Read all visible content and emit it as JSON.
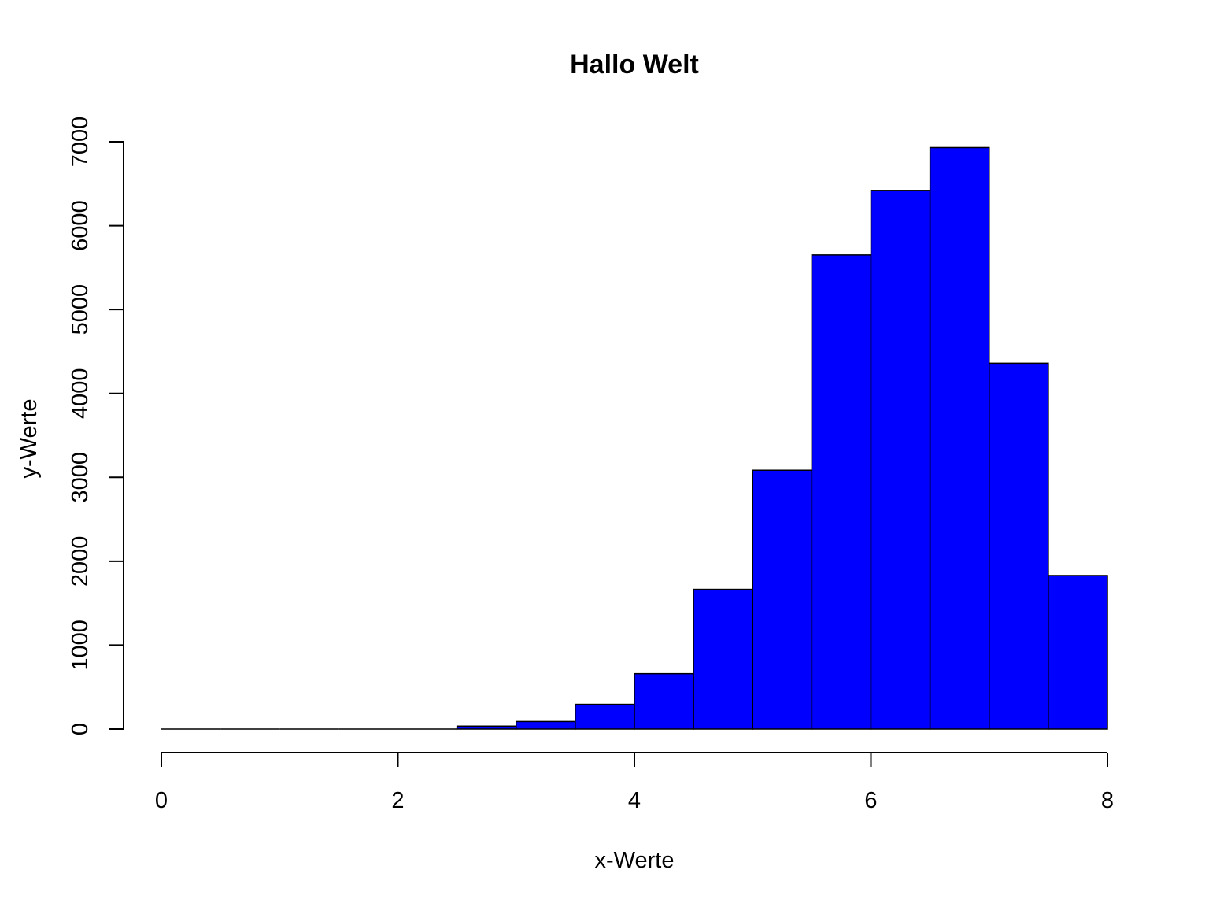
{
  "chart_data": {
    "type": "bar",
    "title": "Hallo Welt",
    "xlabel": "x-Werte",
    "ylabel": "y-Werte",
    "bar_color": "#0000ff",
    "border_color": "#000000",
    "bins": [
      {
        "x0": 0.0,
        "x1": 0.5,
        "count": 0
      },
      {
        "x0": 0.5,
        "x1": 1.0,
        "count": 0
      },
      {
        "x0": 1.0,
        "x1": 1.5,
        "count": 0
      },
      {
        "x0": 1.5,
        "x1": 2.0,
        "count": 0
      },
      {
        "x0": 2.0,
        "x1": 2.5,
        "count": 0
      },
      {
        "x0": 2.5,
        "x1": 3.0,
        "count": 35
      },
      {
        "x0": 3.0,
        "x1": 3.5,
        "count": 90
      },
      {
        "x0": 3.5,
        "x1": 4.0,
        "count": 295
      },
      {
        "x0": 4.0,
        "x1": 4.5,
        "count": 660
      },
      {
        "x0": 4.5,
        "x1": 5.0,
        "count": 1665
      },
      {
        "x0": 5.0,
        "x1": 5.5,
        "count": 3085
      },
      {
        "x0": 5.5,
        "x1": 6.0,
        "count": 5650
      },
      {
        "x0": 6.0,
        "x1": 6.5,
        "count": 6420
      },
      {
        "x0": 6.5,
        "x1": 7.0,
        "count": 6930
      },
      {
        "x0": 7.0,
        "x1": 7.5,
        "count": 4360
      },
      {
        "x0": 7.5,
        "x1": 8.0,
        "count": 1830
      }
    ],
    "xlim": [
      0,
      8
    ],
    "ylim": [
      0,
      7000
    ],
    "xticks": [
      "0",
      "2",
      "4",
      "6",
      "8"
    ],
    "yticks": [
      "0",
      "1000",
      "2000",
      "3000",
      "4000",
      "5000",
      "6000",
      "7000"
    ],
    "grid": false,
    "legend": "none"
  }
}
